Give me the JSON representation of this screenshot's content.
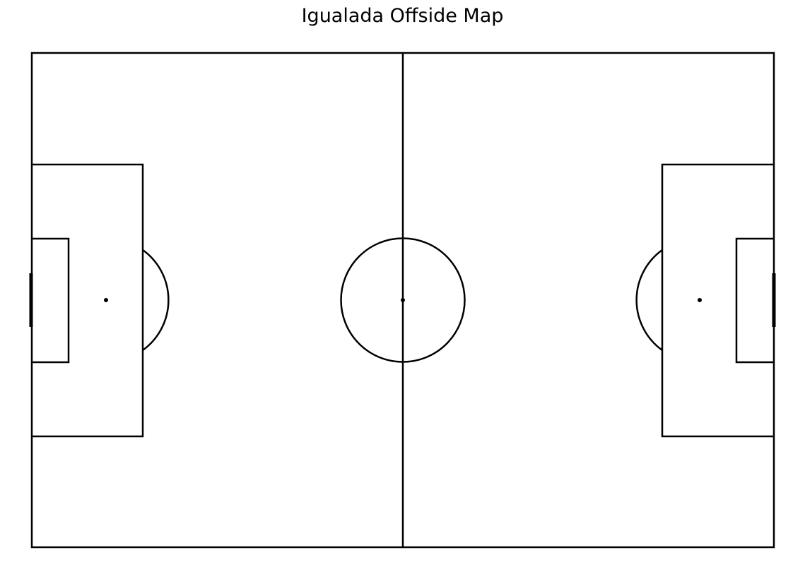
{
  "title": "Igualada Offside Map",
  "colors": {
    "background": "#ffffff",
    "lines": "#000000"
  }
}
